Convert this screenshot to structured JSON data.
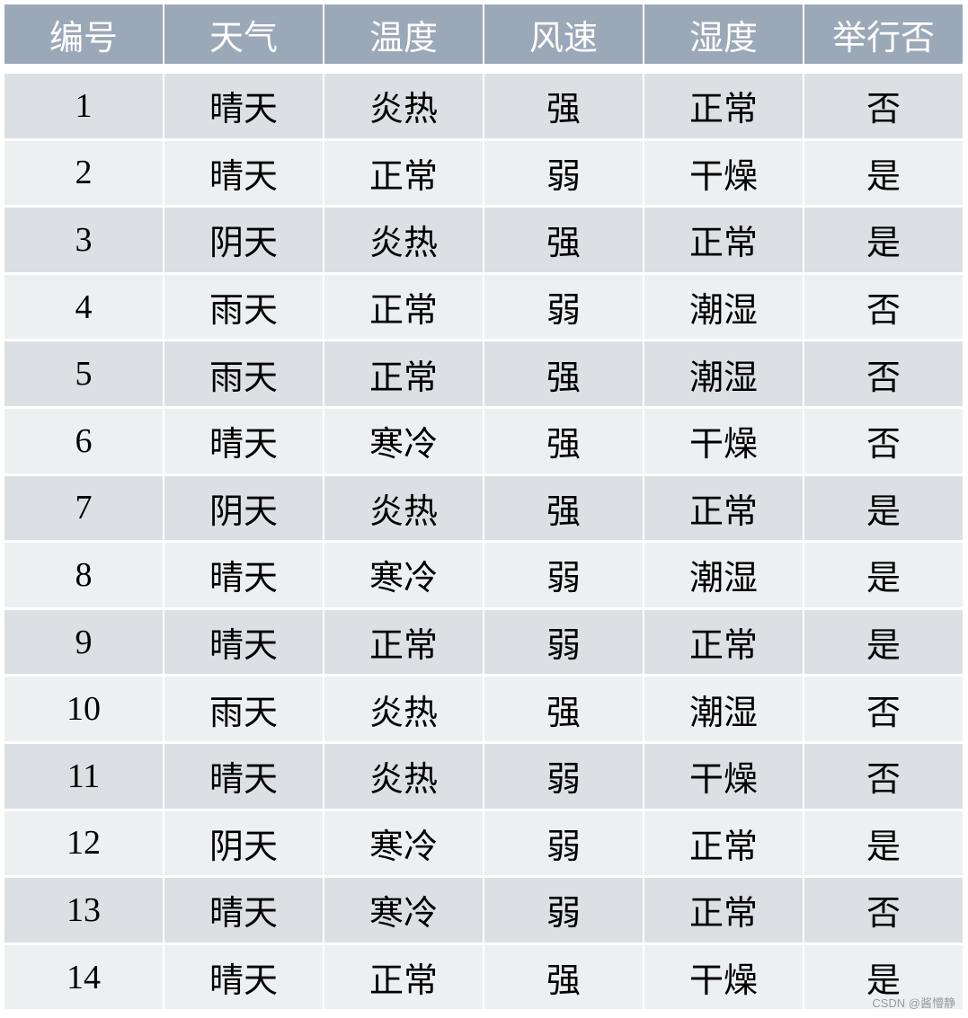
{
  "table": {
    "headers": [
      "编号",
      "天气",
      "温度",
      "风速",
      "湿度",
      "举行否"
    ],
    "rows": [
      [
        "1",
        "晴天",
        "炎热",
        "强",
        "正常",
        "否"
      ],
      [
        "2",
        "晴天",
        "正常",
        "弱",
        "干燥",
        "是"
      ],
      [
        "3",
        "阴天",
        "炎热",
        "强",
        "正常",
        "是"
      ],
      [
        "4",
        "雨天",
        "正常",
        "弱",
        "潮湿",
        "否"
      ],
      [
        "5",
        "雨天",
        "正常",
        "强",
        "潮湿",
        "否"
      ],
      [
        "6",
        "晴天",
        "寒冷",
        "强",
        "干燥",
        "否"
      ],
      [
        "7",
        "阴天",
        "炎热",
        "强",
        "正常",
        "是"
      ],
      [
        "8",
        "晴天",
        "寒冷",
        "弱",
        "潮湿",
        "是"
      ],
      [
        "9",
        "晴天",
        "正常",
        "弱",
        "正常",
        "是"
      ],
      [
        "10",
        "雨天",
        "炎热",
        "强",
        "潮湿",
        "否"
      ],
      [
        "11",
        "晴天",
        "炎热",
        "弱",
        "干燥",
        "否"
      ],
      [
        "12",
        "阴天",
        "寒冷",
        "弱",
        "正常",
        "是"
      ],
      [
        "13",
        "晴天",
        "寒冷",
        "弱",
        "正常",
        "否"
      ],
      [
        "14",
        "晴天",
        "正常",
        "强",
        "干燥",
        "是"
      ]
    ]
  },
  "colors": {
    "header_bg": "#9ba8b8",
    "row_odd": "#dcdfe4",
    "row_even": "#eeeff1"
  },
  "watermark": "CSDN @酱懵静"
}
